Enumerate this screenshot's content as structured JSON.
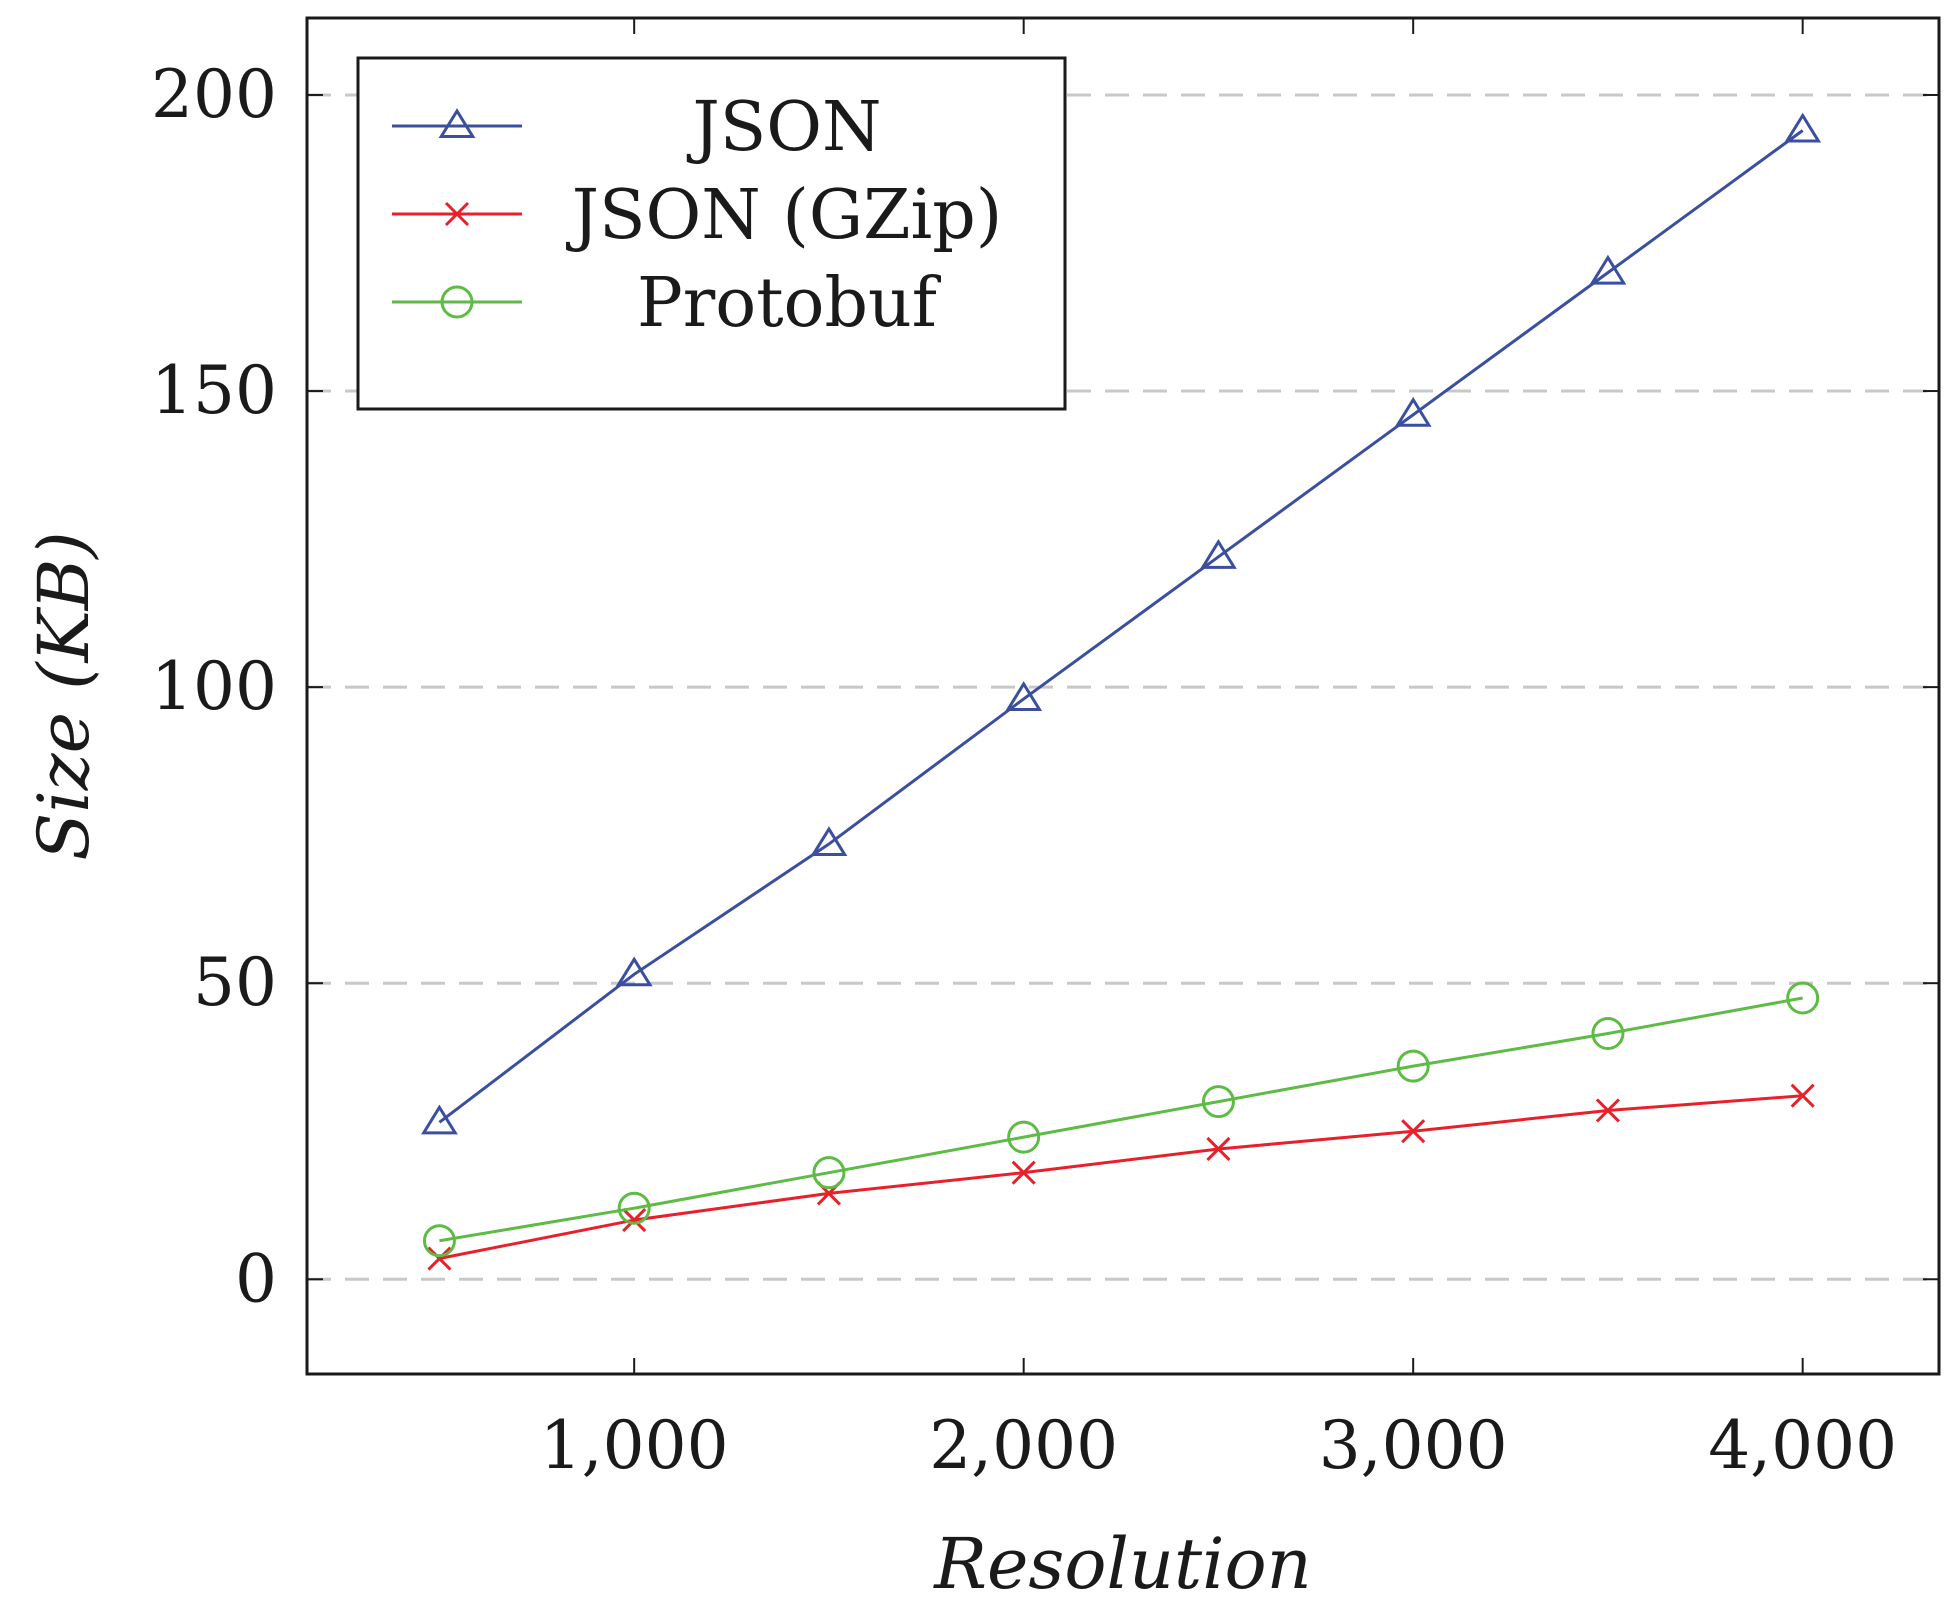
{
  "chart_data": {
    "type": "line",
    "xlabel": "Resolution",
    "ylabel": "Size (KB)",
    "xlim": [
      160,
      4350
    ],
    "ylim": [
      -16,
      213
    ],
    "xticks": [
      1000,
      2000,
      3000,
      4000
    ],
    "xtick_labels": [
      "1,000",
      "2,000",
      "3,000",
      "4,000"
    ],
    "yticks": [
      0,
      50,
      100,
      150,
      200
    ],
    "ytick_labels": [
      "0",
      "50",
      "100",
      "150",
      "200"
    ],
    "grid": "horizontal dashed",
    "legend_position": "top-left",
    "x": [
      500,
      1000,
      1500,
      2000,
      2500,
      3000,
      3500,
      4000
    ],
    "series": [
      {
        "name": "JSON",
        "color": "#3b4fa0",
        "marker": "triangle",
        "values": [
          26.5,
          51.5,
          73.5,
          98,
          122,
          146,
          170,
          194
        ]
      },
      {
        "name": "JSON (GZip)",
        "color": "#e8202a",
        "marker": "cross",
        "values": [
          3.5,
          10,
          14.5,
          18,
          22,
          25,
          28.5,
          31
        ]
      },
      {
        "name": "Protobuf",
        "color": "#5dbb46",
        "marker": "circle",
        "values": [
          6.5,
          12,
          18,
          24,
          30,
          36,
          41.5,
          47.5
        ]
      }
    ]
  }
}
